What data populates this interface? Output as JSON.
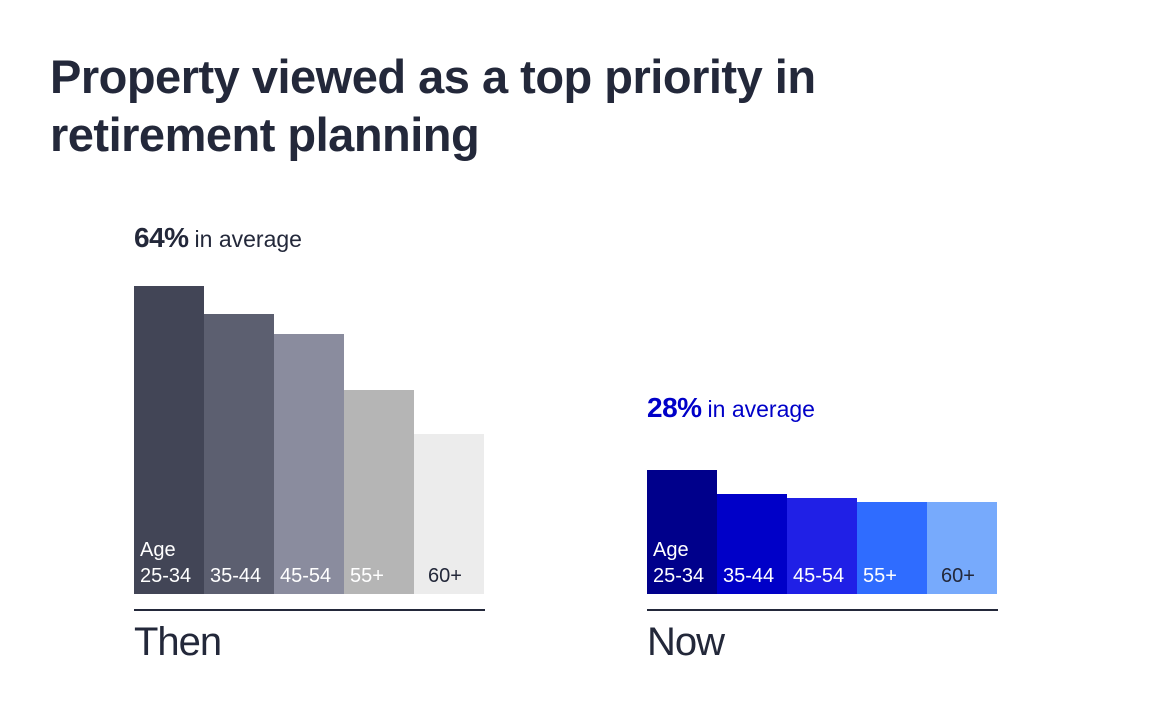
{
  "title": "Property viewed as a top priority in retirement planning",
  "chart_data": [
    {
      "type": "bar",
      "panel_label": "Then",
      "average_value": "64%",
      "average_text": "in average",
      "age_word": "Age",
      "categories": [
        "25-34",
        "35-44",
        "45-54",
        "55+",
        "60+"
      ],
      "values": [
        77,
        70,
        65,
        51,
        40
      ],
      "ylim": [
        0,
        80
      ],
      "colors": [
        "#424556",
        "#5c5f70",
        "#8a8c9e",
        "#b5b5b5",
        "#ececec"
      ],
      "label_colors": [
        "#ffffff",
        "#ffffff",
        "#ffffff",
        "#ffffff",
        "#23283a"
      ],
      "accent": "#23283a"
    },
    {
      "type": "bar",
      "panel_label": "Now",
      "average_value": "28%",
      "average_text": "in average",
      "age_word": "Age",
      "categories": [
        "25-34",
        "35-44",
        "45-54",
        "55+",
        "60+"
      ],
      "values": [
        31,
        25,
        24,
        23,
        23
      ],
      "ylim": [
        0,
        80
      ],
      "colors": [
        "#00008b",
        "#0000c8",
        "#2020e6",
        "#2f6cff",
        "#77aafc"
      ],
      "label_colors": [
        "#ffffff",
        "#ffffff",
        "#ffffff",
        "#ffffff",
        "#23283a"
      ],
      "accent": "#0000c8"
    }
  ]
}
